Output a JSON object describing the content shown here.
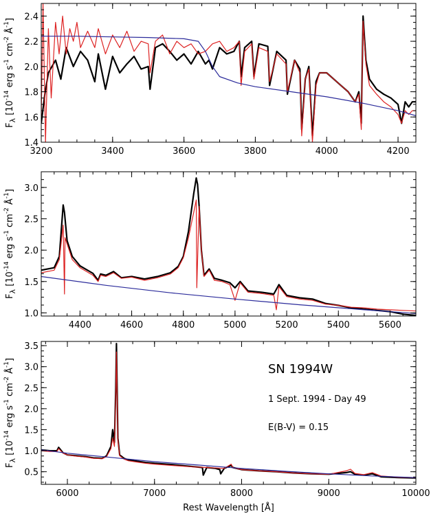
{
  "chart_data": [
    {
      "type": "line",
      "title": "",
      "xlabel": "",
      "ylabel": "F_λ [10^-14 erg s^-1 cm^-2 Å^-1]",
      "xlim": [
        3200,
        4250
      ],
      "ylim": [
        1.4,
        2.5
      ],
      "xticks": [
        3200,
        3400,
        3600,
        3800,
        4000,
        4200
      ],
      "xtick_labels": [
        "3200",
        "3400",
        "3600",
        "3800",
        "4000",
        "4200"
      ],
      "yticks": [
        1.4,
        1.6,
        1.8,
        2.0,
        2.2,
        2.4
      ],
      "ytick_labels": [
        "1.4",
        "1.6",
        "1.8",
        "2.0",
        "2.2",
        "2.4"
      ],
      "series": [
        {
          "color": "#000000",
          "width": 2.2,
          "x": [
            3200,
            3210,
            3220,
            3240,
            3255,
            3270,
            3290,
            3310,
            3330,
            3350,
            3360,
            3380,
            3400,
            3420,
            3440,
            3460,
            3480,
            3500,
            3505,
            3520,
            3540,
            3560,
            3580,
            3600,
            3620,
            3640,
            3660,
            3670,
            3680,
            3700,
            3720,
            3740,
            3755,
            3760,
            3770,
            3790,
            3796,
            3810,
            3835,
            3840,
            3860,
            3886,
            3890,
            3910,
            3925,
            3930,
            3940,
            3950,
            3960,
            3970,
            3980,
            4000,
            4020,
            4040,
            4060,
            4080,
            4090,
            4097,
            4102,
            4110,
            4120,
            4140,
            4160,
            4180,
            4200,
            4210,
            4220,
            4230,
            4240,
            4250
          ],
          "y": [
            1.55,
            1.78,
            1.95,
            2.05,
            1.9,
            2.15,
            2.0,
            2.12,
            2.05,
            1.88,
            2.1,
            1.82,
            2.08,
            1.95,
            2.02,
            2.08,
            1.98,
            2.0,
            1.82,
            2.15,
            2.18,
            2.12,
            2.05,
            2.1,
            2.02,
            2.12,
            2.02,
            2.05,
            1.98,
            2.15,
            2.1,
            2.12,
            2.2,
            1.92,
            2.15,
            2.2,
            1.92,
            2.18,
            2.16,
            1.85,
            2.12,
            2.05,
            1.78,
            2.05,
            1.98,
            1.5,
            1.9,
            2.0,
            1.45,
            1.88,
            1.95,
            1.95,
            1.9,
            1.85,
            1.8,
            1.72,
            1.8,
            1.55,
            2.4,
            2.05,
            1.9,
            1.82,
            1.78,
            1.75,
            1.7,
            1.55,
            1.72,
            1.68,
            1.72,
            1.72
          ]
        },
        {
          "color": "#dd2222",
          "width": 1.2,
          "x": [
            3200,
            3205,
            3212,
            3220,
            3228,
            3240,
            3250,
            3260,
            3270,
            3280,
            3290,
            3300,
            3310,
            3330,
            3350,
            3360,
            3380,
            3400,
            3420,
            3440,
            3460,
            3480,
            3500,
            3505,
            3520,
            3540,
            3560,
            3580,
            3600,
            3620,
            3640,
            3660,
            3680,
            3700,
            3720,
            3740,
            3755,
            3760,
            3770,
            3790,
            3796,
            3810,
            3835,
            3840,
            3860,
            3886,
            3890,
            3910,
            3925,
            3930,
            3940,
            3950,
            3960,
            3970,
            3980,
            4000,
            4020,
            4040,
            4060,
            4080,
            4090,
            4097,
            4102,
            4110,
            4120,
            4140,
            4160,
            4180,
            4200,
            4210,
            4220,
            4230,
            4240,
            4250
          ],
          "y": [
            1.6,
            2.5,
            1.4,
            2.3,
            1.75,
            2.35,
            2.1,
            2.4,
            2.1,
            2.3,
            2.2,
            2.35,
            2.15,
            2.28,
            2.15,
            2.3,
            2.1,
            2.25,
            2.15,
            2.28,
            2.12,
            2.2,
            2.18,
            1.95,
            2.2,
            2.25,
            2.1,
            2.2,
            2.15,
            2.18,
            2.1,
            2.12,
            2.18,
            2.2,
            2.12,
            2.15,
            2.2,
            1.85,
            2.12,
            2.18,
            1.9,
            2.15,
            2.12,
            1.88,
            2.1,
            2.02,
            1.8,
            2.05,
            1.95,
            1.45,
            1.9,
            1.98,
            1.4,
            1.85,
            1.95,
            1.95,
            1.9,
            1.85,
            1.8,
            1.72,
            1.78,
            1.5,
            2.36,
            2.02,
            1.85,
            1.78,
            1.72,
            1.68,
            1.62,
            1.55,
            1.65,
            1.62,
            1.65,
            1.65
          ]
        },
        {
          "color": "#2a2a9a",
          "width": 1.2,
          "x": [
            3200,
            3300,
            3400,
            3500,
            3600,
            3640,
            3660,
            3680,
            3700,
            3750,
            3800,
            3900,
            4000,
            4100,
            4200,
            4250
          ],
          "y": [
            2.24,
            2.24,
            2.235,
            2.23,
            2.22,
            2.2,
            2.12,
            2.0,
            1.92,
            1.87,
            1.84,
            1.8,
            1.76,
            1.71,
            1.65,
            1.61
          ]
        }
      ]
    },
    {
      "type": "line",
      "title": "",
      "xlabel": "",
      "ylabel": "F_λ [10^-14 erg s^-1 cm^-2 Å^-1]",
      "xlim": [
        4250,
        5700
      ],
      "ylim": [
        0.95,
        3.25
      ],
      "xticks": [
        4400,
        4600,
        4800,
        5000,
        5200,
        5400,
        5600
      ],
      "xtick_labels": [
        "4400",
        "4600",
        "4800",
        "5000",
        "5200",
        "5400",
        "5600"
      ],
      "yticks": [
        1.0,
        1.5,
        2.0,
        2.5,
        3.0
      ],
      "ytick_labels": [
        "1.0",
        "1.5",
        "2.0",
        "2.5",
        "3.0"
      ],
      "series": [
        {
          "color": "#000000",
          "width": 2.2,
          "x": [
            4250,
            4300,
            4320,
            4335,
            4340,
            4350,
            4370,
            4400,
            4450,
            4470,
            4480,
            4500,
            4530,
            4560,
            4600,
            4650,
            4700,
            4750,
            4780,
            4800,
            4820,
            4840,
            4850,
            4855,
            4861,
            4870,
            4880,
            4900,
            4920,
            4950,
            4980,
            5000,
            5020,
            5050,
            5100,
            5150,
            5170,
            5200,
            5250,
            5300,
            5350,
            5400,
            5450,
            5500,
            5550,
            5600,
            5650,
            5700
          ],
          "y": [
            1.68,
            1.72,
            1.9,
            2.72,
            2.6,
            2.15,
            1.9,
            1.75,
            1.63,
            1.52,
            1.62,
            1.6,
            1.66,
            1.56,
            1.58,
            1.54,
            1.58,
            1.64,
            1.74,
            1.9,
            2.3,
            2.9,
            3.15,
            3.05,
            2.7,
            2.0,
            1.6,
            1.7,
            1.55,
            1.52,
            1.48,
            1.4,
            1.5,
            1.35,
            1.33,
            1.3,
            1.45,
            1.28,
            1.24,
            1.22,
            1.15,
            1.12,
            1.08,
            1.06,
            1.04,
            1.02,
            0.98,
            0.96
          ]
        },
        {
          "color": "#dd2222",
          "width": 1.2,
          "x": [
            4250,
            4300,
            4320,
            4335,
            4340,
            4342,
            4350,
            4370,
            4400,
            4450,
            4470,
            4480,
            4500,
            4530,
            4560,
            4600,
            4650,
            4700,
            4750,
            4780,
            4800,
            4820,
            4840,
            4850,
            4852,
            4861,
            4870,
            4880,
            4900,
            4920,
            4950,
            4980,
            5000,
            5020,
            5050,
            5100,
            5150,
            5160,
            5170,
            5200,
            5250,
            5300,
            5350,
            5400,
            5450,
            5500,
            5550,
            5600,
            5650,
            5700
          ],
          "y": [
            1.64,
            1.68,
            1.85,
            2.4,
            1.3,
            2.2,
            2.1,
            1.85,
            1.72,
            1.6,
            1.5,
            1.6,
            1.58,
            1.64,
            1.55,
            1.57,
            1.52,
            1.56,
            1.62,
            1.72,
            1.88,
            2.2,
            2.6,
            2.8,
            1.4,
            2.7,
            2.0,
            1.58,
            1.68,
            1.52,
            1.5,
            1.45,
            1.2,
            1.48,
            1.33,
            1.31,
            1.28,
            1.05,
            1.42,
            1.26,
            1.22,
            1.2,
            1.14,
            1.12,
            1.09,
            1.08,
            1.06,
            1.05,
            1.04,
            1.03
          ]
        },
        {
          "color": "#2a2a9a",
          "width": 1.2,
          "x": [
            4250,
            4500,
            4750,
            5000,
            5250,
            5500,
            5700
          ],
          "y": [
            1.58,
            1.44,
            1.32,
            1.22,
            1.13,
            1.05,
            0.99
          ]
        }
      ]
    },
    {
      "type": "line",
      "title": "",
      "xlabel": "Rest Wavelength [Å]",
      "ylabel": "F_λ [10^-14 erg s^-1 cm^-2 Å^-1]",
      "xlim": [
        5700,
        10000
      ],
      "ylim": [
        0.2,
        3.6
      ],
      "xticks": [
        6000,
        7000,
        8000,
        9000,
        10000
      ],
      "xtick_labels": [
        "6000",
        "7000",
        "8000",
        "9000",
        "10000"
      ],
      "yticks": [
        0.5,
        1.0,
        1.5,
        2.0,
        2.5,
        3.0,
        3.5
      ],
      "ytick_labels": [
        "0.5",
        "1.0",
        "1.5",
        "2.0",
        "2.5",
        "3.0",
        "3.5"
      ],
      "annotations": [
        "SN 1994W",
        "1 Sept. 1994 - Day 49",
        "E(B-V) = 0.15"
      ],
      "series": [
        {
          "color": "#000000",
          "width": 2.2,
          "x": [
            5700,
            5800,
            5880,
            5900,
            5950,
            6000,
            6100,
            6200,
            6300,
            6400,
            6450,
            6500,
            6520,
            6540,
            6555,
            6563,
            6570,
            6580,
            6600,
            6650,
            6700,
            6800,
            6900,
            7000,
            7200,
            7400,
            7550,
            7560,
            7600,
            7700,
            7750,
            7760,
            7800,
            7880,
            7900,
            8000,
            8200,
            8400,
            8600,
            8800,
            9000,
            9200,
            9250,
            9300,
            9400,
            9500,
            9600,
            9800,
            10000
          ],
          "y": [
            1.02,
            1.0,
            1.0,
            1.08,
            0.95,
            0.9,
            0.88,
            0.86,
            0.83,
            0.82,
            0.88,
            1.1,
            1.5,
            1.2,
            2.5,
            3.55,
            2.6,
            1.3,
            0.9,
            0.82,
            0.78,
            0.75,
            0.72,
            0.7,
            0.67,
            0.63,
            0.6,
            0.42,
            0.6,
            0.58,
            0.55,
            0.45,
            0.58,
            0.65,
            0.6,
            0.55,
            0.52,
            0.5,
            0.47,
            0.45,
            0.44,
            0.48,
            0.5,
            0.44,
            0.42,
            0.45,
            0.38,
            0.36,
            0.35
          ]
        },
        {
          "color": "#dd2222",
          "width": 1.2,
          "x": [
            5700,
            5800,
            5880,
            5900,
            5950,
            6000,
            6100,
            6200,
            6300,
            6400,
            6450,
            6500,
            6520,
            6540,
            6555,
            6563,
            6570,
            6580,
            6600,
            6650,
            6700,
            6800,
            6900,
            7000,
            7200,
            7400,
            7600,
            7800,
            7880,
            7900,
            8000,
            8200,
            8400,
            8600,
            8800,
            9000,
            9200,
            9250,
            9300,
            9400,
            9500,
            9600,
            9800,
            10000
          ],
          "y": [
            1.0,
            0.98,
            0.98,
            1.05,
            0.94,
            0.9,
            0.87,
            0.85,
            0.82,
            0.81,
            0.86,
            1.05,
            1.3,
            1.1,
            2.3,
            3.35,
            2.4,
            1.25,
            0.88,
            0.8,
            0.76,
            0.73,
            0.7,
            0.68,
            0.65,
            0.62,
            0.6,
            0.58,
            0.68,
            0.6,
            0.55,
            0.52,
            0.5,
            0.47,
            0.45,
            0.44,
            0.52,
            0.56,
            0.46,
            0.43,
            0.48,
            0.4,
            0.37,
            0.36
          ]
        },
        {
          "color": "#2a2a9a",
          "width": 1.2,
          "x": [
            5700,
            6000,
            6500,
            7000,
            7500,
            8000,
            8500,
            9000,
            9500,
            10000
          ],
          "y": [
            1.02,
            0.94,
            0.84,
            0.74,
            0.66,
            0.58,
            0.51,
            0.45,
            0.4,
            0.36
          ]
        }
      ]
    }
  ]
}
